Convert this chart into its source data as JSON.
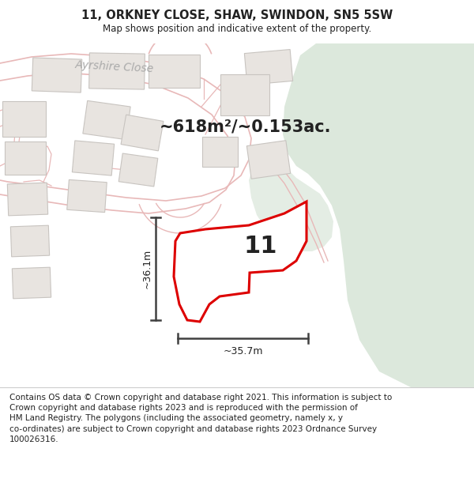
{
  "title": "11, ORKNEY CLOSE, SHAW, SWINDON, SN5 5SW",
  "subtitle": "Map shows position and indicative extent of the property.",
  "footer_line1": "Contains OS data © Crown copyright and database right 2021. This information is subject to Crown copyright and database rights 2023 and is reproduced with the permission of",
  "footer_line2": "HM Land Registry. The polygons (including the associated geometry, namely x, y co-ordinates) are subject to Crown copyright and database rights 2023 Ordnance Survey",
  "footer_line3": "100026316.",
  "area_label": "~618m²/~0.153ac.",
  "dim_horizontal": "~35.7m",
  "dim_vertical": "~36.1m",
  "property_number": "11",
  "bg_color": "#f7f3f3",
  "road_fill_color": "#f2e8e8",
  "road_line_color": "#e8b8b8",
  "building_fill": "#e8e4e0",
  "building_edge": "#c8c4c0",
  "green_color": "#dce8dc",
  "green_strip_color": "#e4ede4",
  "property_red": "#dd0000",
  "dim_line_color": "#404040",
  "street_label_color": "#aaaaaa",
  "text_color": "#222222",
  "title_fontsize": 10.5,
  "subtitle_fontsize": 8.5,
  "footer_fontsize": 7.5,
  "area_fontsize": 15,
  "number_fontsize": 22,
  "dim_fontsize": 9,
  "street_fontsize": 10
}
